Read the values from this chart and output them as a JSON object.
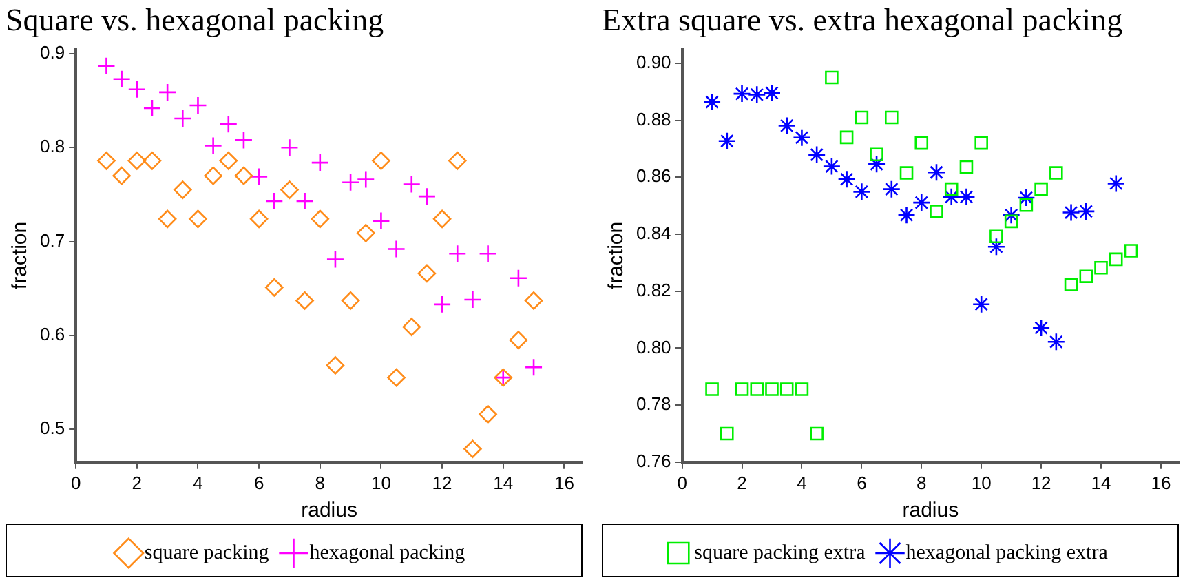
{
  "chart_data": [
    {
      "type": "scatter",
      "title": "Square vs. hexagonal packing",
      "xlabel": "radius",
      "ylabel": "fraction",
      "xlim": [
        0,
        16.6
      ],
      "xticks": [
        0,
        2,
        4,
        6,
        8,
        10,
        12,
        14,
        16
      ],
      "ylim": [
        0.465,
        0.905
      ],
      "yticks": [
        0.5,
        0.6,
        0.7,
        0.8,
        0.9
      ],
      "grid": false,
      "legend": "bottom",
      "series": [
        {
          "name": "square packing",
          "color": "#ff8c1a",
          "marker": "diamond",
          "x": [
            1,
            1.5,
            2,
            2.5,
            3,
            3.5,
            4,
            4.5,
            5,
            5.5,
            6,
            6.5,
            7,
            7.5,
            8,
            8.5,
            9,
            9.5,
            10,
            10.5,
            11,
            11.5,
            12,
            12.5,
            13,
            13.5,
            14,
            14.5,
            15
          ],
          "values": [
            0.786,
            0.77,
            0.786,
            0.786,
            0.724,
            0.755,
            0.724,
            0.77,
            0.786,
            0.77,
            0.724,
            0.651,
            0.755,
            0.637,
            0.724,
            0.568,
            0.637,
            0.709,
            0.786,
            0.555,
            0.609,
            0.666,
            0.724,
            0.786,
            0.479,
            0.516,
            0.555,
            0.595,
            0.637
          ]
        },
        {
          "name": "hexagonal packing",
          "color": "#ff00ff",
          "marker": "cross",
          "x": [
            1,
            1.5,
            2,
            2.5,
            3,
            3.5,
            4,
            4.5,
            5,
            5.5,
            6,
            6.5,
            7,
            7.5,
            8,
            8.5,
            9,
            9.5,
            10,
            10.5,
            11,
            11.5,
            12,
            12.5,
            13,
            13.5,
            14,
            14.5,
            15
          ],
          "values": [
            0.887,
            0.873,
            0.862,
            0.842,
            0.859,
            0.831,
            0.845,
            0.802,
            0.825,
            0.808,
            0.769,
            0.743,
            0.8,
            0.743,
            0.784,
            0.681,
            0.763,
            0.766,
            0.722,
            0.692,
            0.761,
            0.748,
            0.633,
            0.687,
            0.638,
            0.687,
            0.555,
            0.661,
            0.566
          ]
        }
      ]
    },
    {
      "type": "scatter",
      "title": "Extra square vs. extra hexagonal packing",
      "xlabel": "radius",
      "ylabel": "fraction",
      "xlim": [
        0,
        16.6
      ],
      "xticks": [
        0,
        2,
        4,
        6,
        8,
        10,
        12,
        14,
        16
      ],
      "ylim": [
        0.76,
        0.905
      ],
      "yticks": [
        {
          "value": 0.76,
          "label": "0.76"
        },
        {
          "value": 0.78,
          "label": "0.78"
        },
        {
          "value": 0.8,
          "label": "0.80"
        },
        {
          "value": 0.82,
          "label": "0.82"
        },
        {
          "value": 0.84,
          "label": "0.84"
        },
        {
          "value": 0.86,
          "label": "0.86"
        },
        {
          "value": 0.88,
          "label": "0.88"
        },
        {
          "value": 0.9,
          "label": "0.90"
        }
      ],
      "grid": false,
      "legend": "bottom",
      "series": [
        {
          "name": "square packing extra",
          "color": "#00ee00",
          "marker": "square",
          "x": [
            1,
            1.5,
            2,
            2.5,
            3,
            3.5,
            4,
            4.5,
            5,
            5.5,
            6,
            6.5,
            7,
            7.5,
            8,
            8.5,
            9,
            9.5,
            10,
            10.5,
            11,
            11.5,
            12,
            12.5,
            13,
            13.5,
            14,
            14.5,
            15
          ],
          "values": [
            0.7856,
            0.77,
            0.7856,
            0.7856,
            0.7856,
            0.7856,
            0.7856,
            0.77,
            0.895,
            0.874,
            0.881,
            0.868,
            0.881,
            0.8615,
            0.872,
            0.848,
            0.8558,
            0.8636,
            0.872,
            0.8392,
            0.8445,
            0.8502,
            0.8558,
            0.8615,
            0.8223,
            0.8252,
            0.8282,
            0.8312,
            0.8342
          ]
        },
        {
          "name": "hexagonal packing extra",
          "color": "#0000ff",
          "x": [
            1,
            1.5,
            2,
            2.5,
            3,
            3.5,
            4,
            4.5,
            5,
            5.5,
            6,
            6.5,
            7,
            7.5,
            8,
            8.5,
            9,
            9.5,
            10,
            10.5,
            11,
            11.5,
            12,
            12.5,
            13,
            13.5,
            14.5
          ],
          "values": [
            0.8864,
            0.8727,
            0.8893,
            0.889,
            0.8896,
            0.8781,
            0.8739,
            0.8679,
            0.8638,
            0.8593,
            0.8549,
            0.8646,
            0.8558,
            0.8467,
            0.8511,
            0.8617,
            0.8531,
            0.8531,
            0.8154,
            0.8356,
            0.8467,
            0.8528,
            0.8071,
            0.8022,
            0.8476,
            0.848,
            0.8578
          ]
        }
      ]
    }
  ]
}
